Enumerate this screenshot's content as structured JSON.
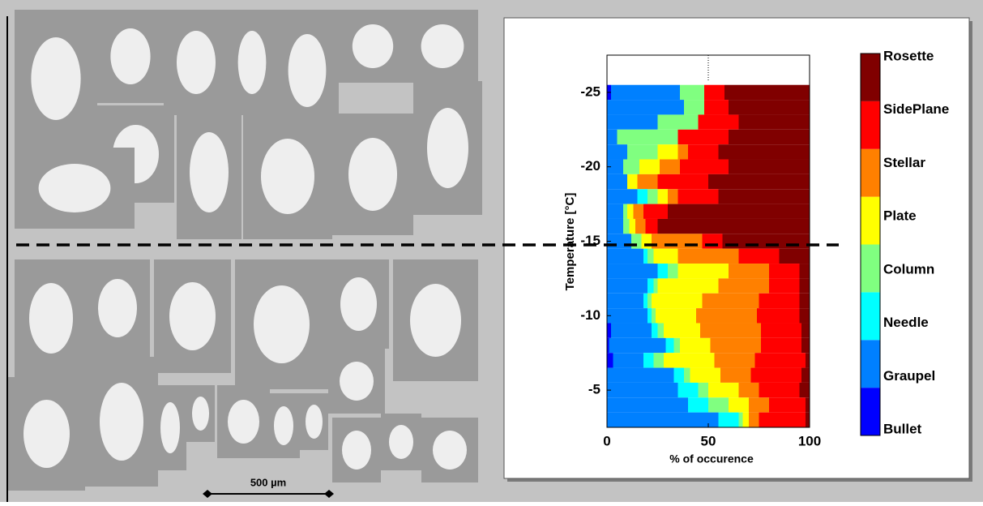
{
  "scale_bar_label": "500 µm",
  "chart_data": {
    "type": "stacked-barh",
    "xlabel": "% of occurence",
    "ylabel": "Temperature [°C]",
    "xlim": [
      0,
      100
    ],
    "xticks": [
      0,
      50,
      100
    ],
    "ylim": [
      -27.5,
      -2.5
    ],
    "yticks": [
      -25,
      -20,
      -15,
      -10,
      -5
    ],
    "y": [
      -25,
      -24,
      -23,
      -22,
      -21,
      -20,
      -19,
      -18,
      -17,
      -16,
      -15,
      -14,
      -13,
      -12,
      -11,
      -10,
      -9,
      -8,
      -7,
      -6,
      -5,
      -4,
      -3
    ],
    "series": [
      {
        "name": "Bullet",
        "color": "#0000ff",
        "values": [
          2,
          0,
          0,
          0,
          0,
          0,
          0,
          0,
          0,
          0,
          0,
          0,
          0,
          0,
          0,
          0,
          2,
          1,
          3,
          0,
          0,
          0,
          0
        ]
      },
      {
        "name": "Graupel",
        "color": "#0080ff",
        "values": [
          34,
          38,
          25,
          5,
          10,
          8,
          10,
          15,
          8,
          8,
          12,
          18,
          25,
          20,
          18,
          20,
          20,
          28,
          15,
          33,
          35,
          40,
          55
        ]
      },
      {
        "name": "Needle",
        "color": "#00ffff",
        "values": [
          0,
          0,
          0,
          0,
          0,
          0,
          0,
          5,
          0,
          0,
          0,
          2,
          5,
          3,
          2,
          2,
          3,
          4,
          5,
          5,
          10,
          10,
          10
        ]
      },
      {
        "name": "Column",
        "color": "#80ff80",
        "values": [
          12,
          10,
          20,
          30,
          15,
          8,
          0,
          5,
          2,
          3,
          5,
          3,
          5,
          2,
          2,
          2,
          3,
          3,
          5,
          3,
          5,
          10,
          2
        ]
      },
      {
        "name": "Plate",
        "color": "#ffff00",
        "values": [
          0,
          0,
          0,
          0,
          10,
          10,
          5,
          5,
          3,
          3,
          5,
          12,
          25,
          30,
          25,
          20,
          18,
          15,
          25,
          15,
          15,
          10,
          3
        ]
      },
      {
        "name": "Stellar",
        "color": "#ff8000",
        "values": [
          0,
          0,
          0,
          0,
          5,
          10,
          10,
          5,
          5,
          5,
          25,
          30,
          20,
          25,
          28,
          30,
          30,
          25,
          20,
          15,
          10,
          10,
          5
        ]
      },
      {
        "name": "SidePlane",
        "color": "#ff0000",
        "values": [
          10,
          12,
          20,
          25,
          15,
          24,
          25,
          20,
          12,
          6,
          10,
          20,
          15,
          15,
          20,
          21,
          20,
          20,
          25,
          25,
          20,
          18,
          23
        ]
      },
      {
        "name": "Rosette",
        "color": "#800000",
        "values": [
          42,
          40,
          35,
          40,
          45,
          40,
          50,
          45,
          70,
          75,
          43,
          15,
          5,
          5,
          5,
          5,
          4,
          4,
          2,
          4,
          5,
          2,
          2
        ]
      }
    ]
  }
}
